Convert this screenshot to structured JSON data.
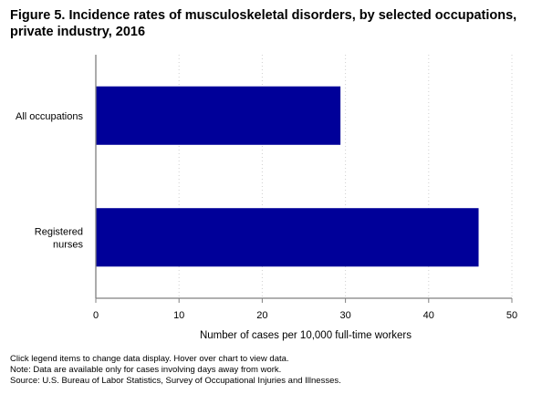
{
  "chart_data": {
    "type": "bar",
    "orientation": "horizontal",
    "title": "Figure 5. Incidence rates of musculoskeletal disorders, by selected occupations, private industry, 2016",
    "categories": [
      [
        "All occupations"
      ],
      [
        "Registered",
        "nurses"
      ]
    ],
    "values": [
      29.4,
      46.0
    ],
    "xlabel": "Number of cases per 10,000 full-time workers",
    "ylabel": "",
    "xlim": [
      0,
      50
    ],
    "xticks": [
      "0",
      "10",
      "20",
      "30",
      "40",
      "50"
    ],
    "grid": "vertical-dotted",
    "bar_color": "#000099"
  },
  "footnotes": {
    "interaction": "Click legend items to change data display. Hover over chart to view data.",
    "note": "Note: Data are available only for cases involving days away from work.",
    "source": "Source: U.S. Bureau of Labor Statistics, Survey of Occupational Injuries and Illnesses."
  }
}
